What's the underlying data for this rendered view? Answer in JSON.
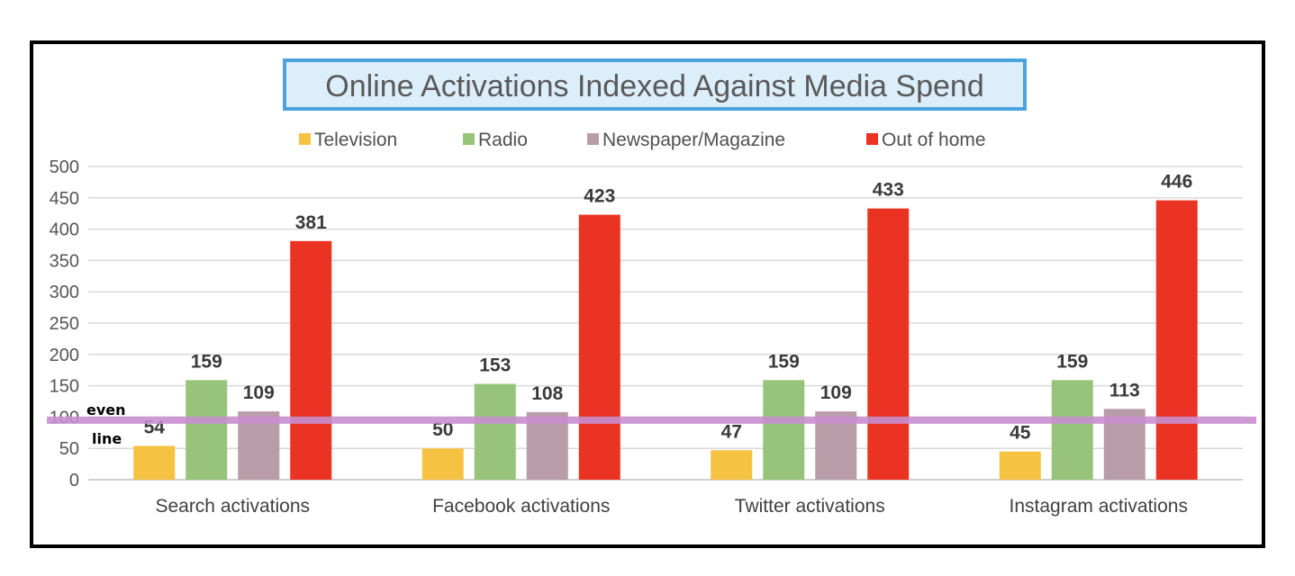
{
  "chart_data": {
    "type": "bar",
    "title": "Online Activations Indexed Against Media Spend",
    "categories": [
      "Search activations",
      "Facebook activations",
      "Twitter activations",
      "Instagram activations"
    ],
    "series": [
      {
        "name": "Television",
        "color": "#F5C242",
        "values": [
          54,
          50,
          47,
          45
        ]
      },
      {
        "name": "Radio",
        "color": "#97C47A",
        "values": [
          159,
          153,
          159,
          159
        ]
      },
      {
        "name": "Newspaper/Magazine",
        "color": "#B89CA8",
        "values": [
          109,
          108,
          109,
          113
        ]
      },
      {
        "name": "Out of home",
        "color": "#EA3323",
        "values": [
          381,
          423,
          433,
          446
        ]
      }
    ],
    "ylim": [
      0,
      500
    ],
    "yticks": [
      0,
      50,
      100,
      150,
      200,
      250,
      300,
      350,
      400,
      450,
      500
    ],
    "ytick_labels": [
      "0",
      "50",
      "100",
      "150",
      "200",
      "250",
      "300",
      "350",
      "400",
      "450",
      "500"
    ],
    "grid": true,
    "legend_position": "top",
    "reference_line": {
      "value": 95,
      "label_top": "even",
      "label_bottom": "line",
      "color": "#C98FD0"
    },
    "title_box": {
      "fill": "#DCEEFA",
      "border": "#4BA3DC"
    },
    "xlabel": "",
    "ylabel": ""
  }
}
